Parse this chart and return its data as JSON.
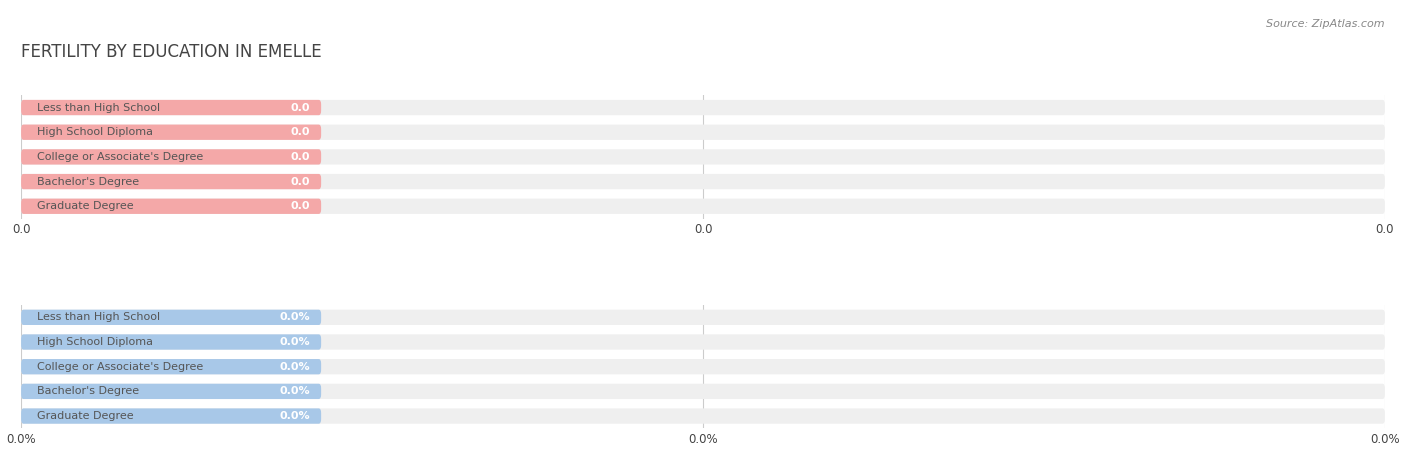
{
  "title": "FERTILITY BY EDUCATION IN EMELLE",
  "source": "Source: ZipAtlas.com",
  "categories": [
    "Less than High School",
    "High School Diploma",
    "College or Associate's Degree",
    "Bachelor's Degree",
    "Graduate Degree"
  ],
  "top_values": [
    0.0,
    0.0,
    0.0,
    0.0,
    0.0
  ],
  "bottom_values": [
    0.0,
    0.0,
    0.0,
    0.0,
    0.0
  ],
  "top_color": "#F4A8A8",
  "bottom_color": "#A8C8E8",
  "bar_bg_color": "#EFEFEF",
  "x_max": 100.0,
  "colored_bar_width": 22.0,
  "bar_height": 0.62,
  "figsize": [
    14.06,
    4.76
  ],
  "dpi": 100,
  "title_fontsize": 12,
  "label_fontsize": 8.0,
  "value_fontsize": 8.0,
  "tick_fontsize": 8.5,
  "source_fontsize": 8,
  "background_color": "#FFFFFF",
  "grid_color": "#CCCCCC",
  "text_color": "#444444",
  "label_text_color": "#555555",
  "x_ticks": [
    0.0,
    50.0,
    100.0
  ],
  "x_tick_labels_top": [
    "0.0",
    "0.0",
    "0.0"
  ],
  "x_tick_labels_bottom": [
    "0.0%",
    "0.0%",
    "0.0%"
  ]
}
